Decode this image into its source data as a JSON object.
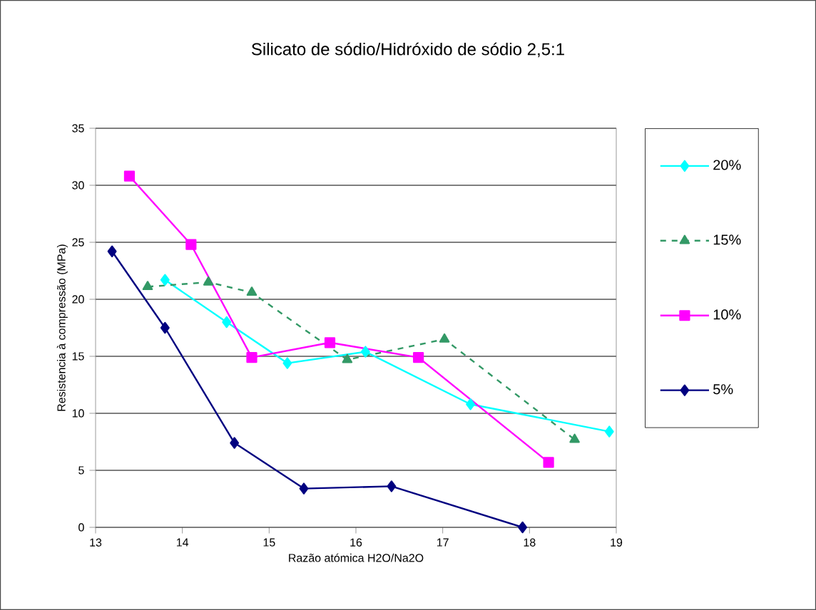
{
  "chart_data": {
    "type": "line",
    "title": "Silicato de sódio/Hidróxido de sódio 2,5:1",
    "xlabel": "Razão atómica H2O/Na2O",
    "ylabel": "Resistencia à compressão (MPa)",
    "xlim": [
      13,
      19
    ],
    "xticks": [
      13,
      14,
      15,
      16,
      17,
      18,
      19
    ],
    "ylim": [
      0,
      35
    ],
    "yticks": [
      0,
      5,
      10,
      15,
      20,
      25,
      30,
      35
    ],
    "grid": "y",
    "legend": "right",
    "series": [
      {
        "name": "20%",
        "color": "#00ffff",
        "marker": "diamond",
        "line_style": "solid",
        "x": [
          13.8,
          14.51,
          15.21,
          16.11,
          17.32,
          18.92
        ],
        "values": [
          21.7,
          18.0,
          14.4,
          15.4,
          10.8,
          8.4
        ]
      },
      {
        "name": "15%",
        "color": "#339966",
        "marker": "triangle",
        "line_style": "dashed",
        "x": [
          13.6,
          14.3,
          14.8,
          15.9,
          17.02,
          18.52
        ],
        "values": [
          21.1,
          21.5,
          20.6,
          14.7,
          16.5,
          7.7
        ]
      },
      {
        "name": "10%",
        "color": "#ff00ff",
        "marker": "square",
        "line_style": "solid",
        "x": [
          13.39,
          14.1,
          14.8,
          15.7,
          16.72,
          18.22
        ],
        "values": [
          30.8,
          24.8,
          14.9,
          16.2,
          14.9,
          5.7
        ]
      },
      {
        "name": "5%",
        "color": "#000080",
        "marker": "diamond",
        "line_style": "solid",
        "x": [
          13.19,
          13.8,
          14.6,
          15.4,
          16.41,
          17.92
        ],
        "values": [
          24.2,
          17.5,
          7.4,
          3.4,
          3.6,
          0
        ]
      }
    ]
  }
}
